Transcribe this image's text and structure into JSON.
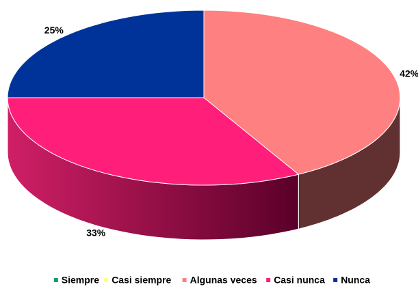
{
  "chart_data": {
    "type": "pie",
    "categories": [
      "Siempre",
      "Casi siempre",
      "Algunas veces",
      "Casi nunca",
      "Nunca"
    ],
    "values": [
      0,
      0,
      42,
      33,
      25
    ],
    "value_labels": [
      null,
      null,
      "42%",
      "33%",
      "25%"
    ],
    "colors": [
      "#00a070",
      "#ffff80",
      "#ff8080",
      "#ff1f7a",
      "#003399"
    ],
    "legend": "bottom"
  }
}
